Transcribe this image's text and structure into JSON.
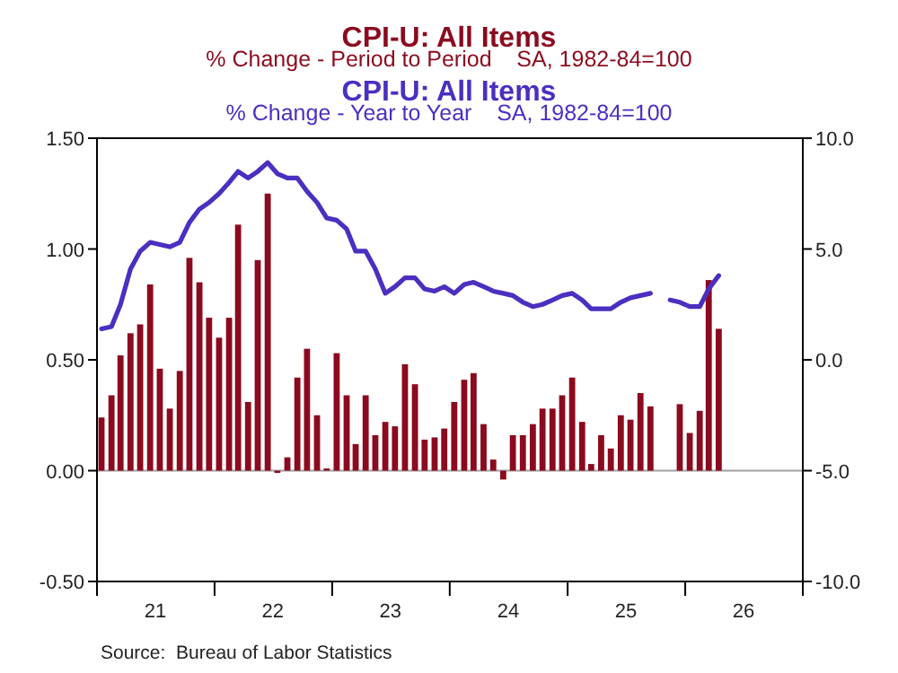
{
  "chart_data": {
    "type": "bar",
    "annotations": [
      "% Change - Period to Period    SA, 1982-84=100",
      "% Change - Year to Year    SA, 1982-84=100",
      "Source:  Bureau of Labor Statistics"
    ],
    "x": [
      "2021-01-15",
      "2021-02-15",
      "2021-03-15",
      "2021-04-15",
      "2021-05-15",
      "2021-06-15",
      "2021-07-15",
      "2021-08-15",
      "2021-09-15",
      "2021-10-15",
      "2021-11-15",
      "2021-12-15",
      "2022-01-15",
      "2022-02-15",
      "2022-03-15",
      "2022-04-15",
      "2022-05-15",
      "2022-06-15",
      "2022-07-15",
      "2022-08-15",
      "2022-09-15",
      "2022-10-15",
      "2022-11-15",
      "2022-12-15",
      "2023-01-15",
      "2023-02-15",
      "2023-03-15",
      "2023-04-15",
      "2023-05-15",
      "2023-06-15",
      "2023-07-15",
      "2023-08-15",
      "2023-09-15",
      "2023-10-15",
      "2023-11-15",
      "2023-12-15",
      "2024-01-15",
      "2024-02-15",
      "2024-03-15",
      "2024-04-15",
      "2024-05-15",
      "2024-06-15",
      "2024-07-15",
      "2024-08-15",
      "2024-09-15",
      "2024-10-15",
      "2024-11-15",
      "2024-12-15",
      "2025-01-15",
      "2025-02-15",
      "2025-03-15",
      "2025-04-15",
      "2025-05-15",
      "2025-06-15",
      "2025-07-15",
      "2025-08-15",
      "2025-09-15",
      "2025-10-15",
      "2025-11-15",
      "2025-12-15",
      "2026-01-15",
      "2026-02-15",
      "2026-03-15",
      "2026-04-15"
    ],
    "series": [
      {
        "name": "CPI-U: All Items",
        "color": "#8b0a1e",
        "values": [
          0.24,
          0.34,
          0.52,
          0.62,
          0.66,
          0.84,
          0.46,
          0.28,
          0.45,
          0.96,
          0.85,
          0.69,
          0.6,
          0.69,
          1.11,
          0.31,
          0.95,
          1.25,
          -0.01,
          0.06,
          0.42,
          0.55,
          0.25,
          0.01,
          0.53,
          0.34,
          0.12,
          0.34,
          0.16,
          0.22,
          0.2,
          0.48,
          0.39,
          0.14,
          0.15,
          0.19,
          0.31,
          0.41,
          0.44,
          0.21,
          0.05,
          -0.04,
          0.16,
          0.16,
          0.21,
          0.28,
          0.28,
          0.34,
          0.42,
          0.22,
          0.03,
          0.16,
          0.1,
          0.25,
          0.23,
          0.35,
          0.29,
          null,
          null,
          0.3,
          0.17,
          0.27,
          0.86,
          0.64
        ]
      },
      {
        "name": "CPI-U: All Items",
        "type": "line",
        "axis": "y2",
        "color": "#4b2fc0",
        "values": [
          1.4,
          1.5,
          2.5,
          4.1,
          4.9,
          5.3,
          5.2,
          5.1,
          5.3,
          6.2,
          6.8,
          7.1,
          7.5,
          8.0,
          8.5,
          8.2,
          8.5,
          8.9,
          8.4,
          8.2,
          8.2,
          7.6,
          7.1,
          6.4,
          6.3,
          5.9,
          4.9,
          4.9,
          4.1,
          3.0,
          3.3,
          3.7,
          3.7,
          3.2,
          3.1,
          3.3,
          3.0,
          3.4,
          3.5,
          3.3,
          3.1,
          3.0,
          2.9,
          2.6,
          2.4,
          2.5,
          2.7,
          2.9,
          3.0,
          2.7,
          2.3,
          2.3,
          2.3,
          2.6,
          2.8,
          2.9,
          3.0,
          null,
          2.7,
          2.6,
          2.4,
          2.4,
          3.2,
          3.8
        ]
      }
    ],
    "xlim": [
      "2021-01",
      "2027-01"
    ],
    "xticks": [
      {
        "value": "2021-01",
        "label": null
      },
      {
        "value": "2021-07",
        "label": "21"
      },
      {
        "value": "2022-01",
        "label": null
      },
      {
        "value": "2022-07",
        "label": "22"
      },
      {
        "value": "2023-01",
        "label": null
      },
      {
        "value": "2023-07",
        "label": "23"
      },
      {
        "value": "2024-01",
        "label": null
      },
      {
        "value": "2024-07",
        "label": "24"
      },
      {
        "value": "2025-01",
        "label": null
      },
      {
        "value": "2025-07",
        "label": "25"
      },
      {
        "value": "2026-01",
        "label": null
      },
      {
        "value": "2026-07",
        "label": "26"
      },
      {
        "value": "2027-01",
        "label": null
      }
    ],
    "ylim": [
      -0.5,
      1.5
    ],
    "yticks": [
      {
        "value": -0.5,
        "label": "-0.50"
      },
      {
        "value": 0,
        "label": "0.00"
      },
      {
        "value": 0.5,
        "label": "0.50"
      },
      {
        "value": 1,
        "label": "1.00"
      },
      {
        "value": 1.5,
        "label": "1.50"
      }
    ],
    "y2lim": [
      -10,
      10
    ],
    "y2ticks": [
      {
        "value": -10,
        "label": "-10.0"
      },
      {
        "value": -5,
        "label": "-5.0"
      },
      {
        "value": 0,
        "label": "0.0"
      },
      {
        "value": 5,
        "label": "5.0"
      },
      {
        "value": 10,
        "label": "10.0"
      }
    ],
    "ref_lines": [
      {
        "axis": "y",
        "value": 0,
        "color": "#a0a0a0"
      }
    ],
    "grid": false,
    "legend": "top"
  }
}
